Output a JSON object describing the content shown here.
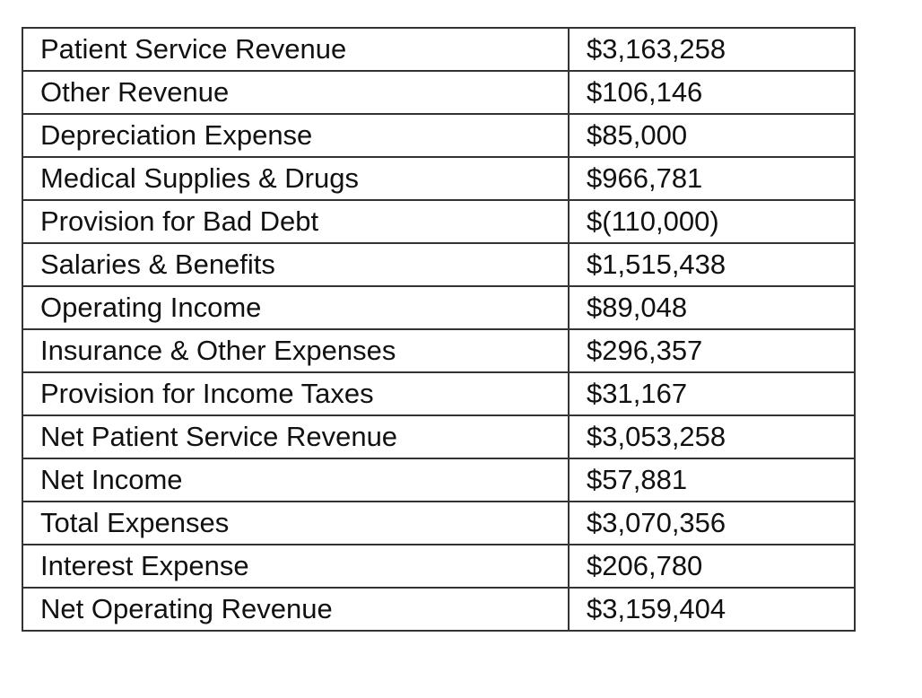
{
  "table": {
    "rows": [
      {
        "label": "Patient Service Revenue",
        "value": "$3,163,258"
      },
      {
        "label": "Other Revenue",
        "value": "$106,146"
      },
      {
        "label": "Depreciation Expense",
        "value": "$85,000"
      },
      {
        "label": "Medical Supplies & Drugs",
        "value": "$966,781"
      },
      {
        "label": "Provision for Bad Debt",
        "value": "$(110,000)"
      },
      {
        "label": "Salaries & Benefits",
        "value": "$1,515,438"
      },
      {
        "label": "Operating Income",
        "value": "$89,048"
      },
      {
        "label": "Insurance & Other Expenses",
        "value": "$296,357"
      },
      {
        "label": "Provision for Income Taxes",
        "value": "$31,167"
      },
      {
        "label": "Net Patient Service Revenue",
        "value": "$3,053,258"
      },
      {
        "label": "Net Income",
        "value": "$57,881"
      },
      {
        "label": "Total Expenses",
        "value": "$3,070,356"
      },
      {
        "label": "Interest Expense",
        "value": "$206,780"
      },
      {
        "label": "Net Operating Revenue",
        "value": "$3,159,404"
      }
    ]
  }
}
